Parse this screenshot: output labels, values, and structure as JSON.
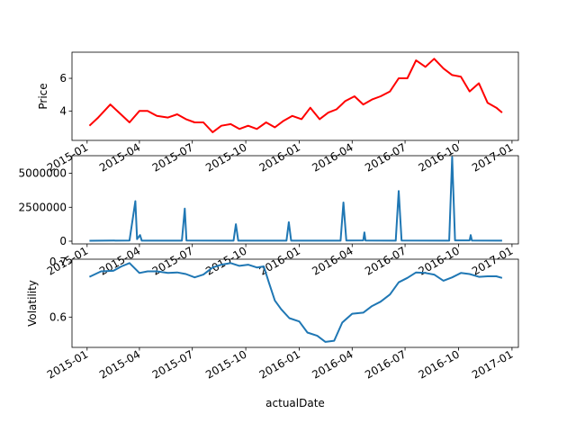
{
  "chart_data": [
    {
      "type": "line",
      "ylabel": "Price",
      "xlabel": "",
      "color": "#ff0000",
      "x_tick_labels": [
        "2015-01",
        "2015-04",
        "2015-07",
        "2015-10",
        "2016-01",
        "2016-04",
        "2016-07",
        "2016-10",
        "2017-01"
      ],
      "y_tick_labels": [
        "4",
        "6"
      ],
      "ylim": [
        2.2,
        7.6
      ],
      "series": [
        {
          "x": [
            "2015-01-05",
            "2015-01-20",
            "2015-02-10",
            "2015-02-28",
            "2015-03-15",
            "2015-04-01",
            "2015-04-15",
            "2015-05-01",
            "2015-05-20",
            "2015-06-05",
            "2015-06-20",
            "2015-07-05",
            "2015-07-20",
            "2015-08-05",
            "2015-08-20",
            "2015-09-05",
            "2015-09-20",
            "2015-10-05",
            "2015-10-20",
            "2015-11-05",
            "2015-11-20",
            "2015-12-05",
            "2015-12-20",
            "2016-01-05",
            "2016-01-20",
            "2016-02-05",
            "2016-02-20",
            "2016-03-05",
            "2016-03-20",
            "2016-04-05",
            "2016-04-20",
            "2016-05-05",
            "2016-05-20",
            "2016-06-05",
            "2016-06-20",
            "2016-07-05",
            "2016-07-20",
            "2016-08-05",
            "2016-08-20",
            "2016-09-05",
            "2016-09-20",
            "2016-10-05",
            "2016-10-20",
            "2016-11-05",
            "2016-11-20",
            "2016-12-05",
            "2016-12-15"
          ],
          "values": [
            3.1,
            3.6,
            4.4,
            3.8,
            3.3,
            4.0,
            4.0,
            3.7,
            3.6,
            3.8,
            3.5,
            3.3,
            3.3,
            2.7,
            3.1,
            3.2,
            2.9,
            3.1,
            2.9,
            3.3,
            3.0,
            3.4,
            3.7,
            3.5,
            4.2,
            3.5,
            3.9,
            4.1,
            4.6,
            4.9,
            4.4,
            4.7,
            4.9,
            5.2,
            6.0,
            6.0,
            7.1,
            6.7,
            7.2,
            6.6,
            6.2,
            6.1,
            5.2,
            5.7,
            4.5,
            4.2,
            3.9
          ]
        }
      ]
    },
    {
      "type": "line",
      "ylabel": "",
      "xlabel": "",
      "color": "#1f77b4",
      "x_tick_labels": [
        "2015-01",
        "2015-04",
        "2015-07",
        "2015-10",
        "2016-01",
        "2016-04",
        "2016-07",
        "2016-10",
        "2017-01"
      ],
      "y_tick_labels": [
        "0",
        "2500000",
        "5000000"
      ],
      "ylim": [
        -200000,
        6300000
      ],
      "series": [
        {
          "x": [
            "2015-01-05",
            "2015-03-15",
            "2015-03-25",
            "2015-03-28",
            "2015-04-02",
            "2015-04-05",
            "2015-06-13",
            "2015-06-18",
            "2015-06-21",
            "2015-09-10",
            "2015-09-14",
            "2015-09-18",
            "2015-12-10",
            "2015-12-14",
            "2015-12-18",
            "2016-03-12",
            "2016-03-17",
            "2016-03-22",
            "2016-04-20",
            "2016-04-22",
            "2016-04-24",
            "2016-06-15",
            "2016-06-20",
            "2016-06-25",
            "2016-09-15",
            "2016-09-20",
            "2016-09-25",
            "2016-10-20",
            "2016-10-22",
            "2016-10-24",
            "2016-12-15"
          ],
          "values": [
            30000,
            50000,
            2950000,
            150000,
            450000,
            40000,
            40000,
            2400000,
            50000,
            40000,
            1250000,
            40000,
            40000,
            1400000,
            40000,
            40000,
            2850000,
            50000,
            60000,
            650000,
            50000,
            40000,
            3700000,
            50000,
            40000,
            6200000,
            60000,
            60000,
            450000,
            50000,
            40000
          ]
        }
      ]
    },
    {
      "type": "line",
      "ylabel": "Volatility",
      "xlabel": "actualDate",
      "color": "#1f77b4",
      "x_tick_labels": [
        "2015-01",
        "2015-04",
        "2015-07",
        "2015-10",
        "2016-01",
        "2016-04",
        "2016-07",
        "2016-10",
        "2017-01"
      ],
      "y_tick_labels": [
        "0.6",
        "0.7"
      ],
      "ylim": [
        0.545,
        0.705
      ],
      "series": [
        {
          "x": [
            "2015-01-05",
            "2015-01-25",
            "2015-02-15",
            "2015-03-01",
            "2015-03-15",
            "2015-04-01",
            "2015-04-15",
            "2015-05-01",
            "2015-05-20",
            "2015-06-05",
            "2015-06-20",
            "2015-07-05",
            "2015-07-20",
            "2015-08-05",
            "2015-08-20",
            "2015-09-05",
            "2015-09-20",
            "2015-10-05",
            "2015-10-20",
            "2015-11-01",
            "2015-11-10",
            "2015-11-20",
            "2015-12-01",
            "2015-12-15",
            "2016-01-01",
            "2016-01-15",
            "2016-02-01",
            "2016-02-15",
            "2016-03-01",
            "2016-03-15",
            "2016-04-01",
            "2016-04-20",
            "2016-05-05",
            "2016-05-20",
            "2016-06-05",
            "2016-06-20",
            "2016-07-05",
            "2016-07-20",
            "2016-08-05",
            "2016-08-20",
            "2016-09-05",
            "2016-09-20",
            "2016-10-05",
            "2016-10-20",
            "2016-11-05",
            "2016-11-20",
            "2016-12-05",
            "2016-12-15"
          ],
          "values": [
            0.673,
            0.683,
            0.684,
            0.692,
            0.698,
            0.68,
            0.683,
            0.683,
            0.68,
            0.681,
            0.678,
            0.672,
            0.677,
            0.69,
            0.695,
            0.698,
            0.693,
            0.695,
            0.69,
            0.692,
            0.662,
            0.63,
            0.614,
            0.598,
            0.592,
            0.572,
            0.566,
            0.555,
            0.557,
            0.59,
            0.606,
            0.608,
            0.62,
            0.628,
            0.641,
            0.663,
            0.671,
            0.681,
            0.68,
            0.677,
            0.666,
            0.672,
            0.68,
            0.678,
            0.673,
            0.674,
            0.674,
            0.671
          ]
        }
      ]
    }
  ]
}
